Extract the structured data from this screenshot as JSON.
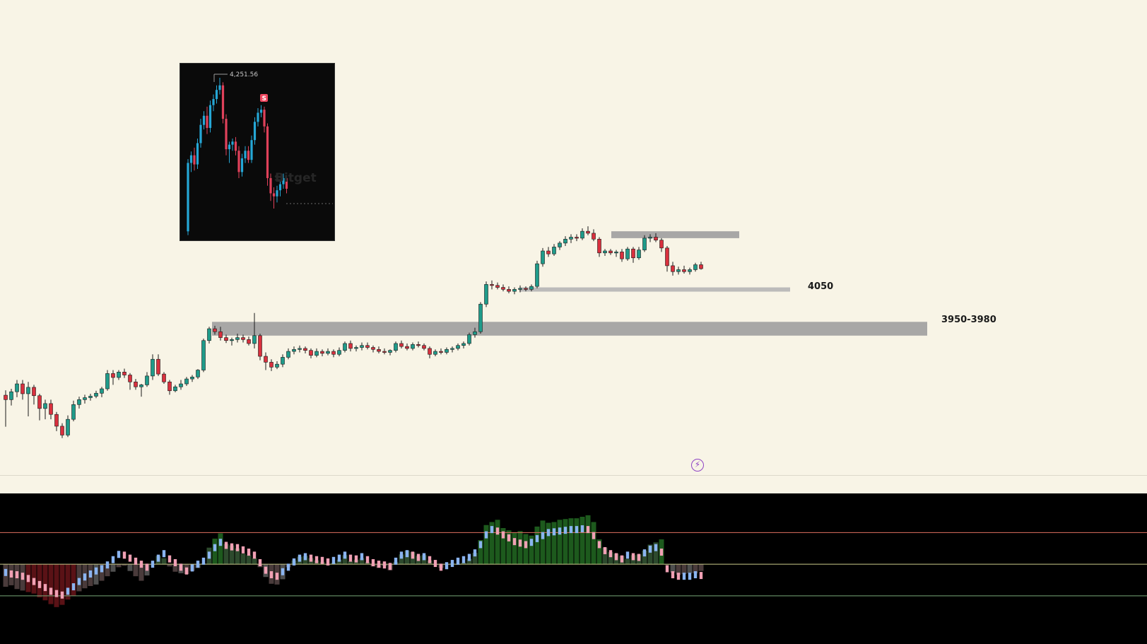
{
  "zones": [
    {
      "label": "4050",
      "top": 4058,
      "bottom": 4050,
      "color": "#b5b5b5"
    },
    {
      "label": "",
      "top": 4172,
      "bottom": 4158,
      "color": "#9e9e9e"
    },
    {
      "label": "3950-3980",
      "top": 3988,
      "bottom": 3960,
      "color": "#9e9e9e"
    }
  ],
  "inset": {
    "price_label": "4,251.56",
    "signal_label": "S",
    "watermark": "Bitget"
  },
  "alert_icon": "lightning-bolt-icon",
  "oscillator": {
    "levels": [
      "upper",
      "middle",
      "lower"
    ]
  },
  "colors": {
    "up": "#1f9b8a",
    "down": "#d9303e",
    "background": "#f8f4e6",
    "osc_background": "#000000",
    "osc_upper_line": "#e07060",
    "osc_middle_line": "#c9c98a",
    "osc_lower_line": "#78a878",
    "osc_blue": "#8ab4f0",
    "osc_pink": "#f0a0b4",
    "inset_up": "#25a7d6",
    "inset_down": "#e0415a",
    "signal": "#f0475f"
  },
  "chart_data": [
    {
      "type": "candlestick",
      "title": "",
      "ylim": [
        3740,
        4300
      ],
      "candles": [
        [
          3839,
          3849,
          3775,
          3830
        ],
        [
          3830,
          3852,
          3818,
          3846
        ],
        [
          3846,
          3870,
          3835,
          3862
        ],
        [
          3862,
          3870,
          3830,
          3842
        ],
        [
          3842,
          3866,
          3796,
          3855
        ],
        [
          3855,
          3860,
          3820,
          3838
        ],
        [
          3838,
          3842,
          3788,
          3812
        ],
        [
          3812,
          3830,
          3790,
          3822
        ],
        [
          3822,
          3830,
          3790,
          3800
        ],
        [
          3800,
          3805,
          3766,
          3776
        ],
        [
          3776,
          3782,
          3752,
          3758
        ],
        [
          3758,
          3798,
          3754,
          3790
        ],
        [
          3790,
          3828,
          3786,
          3820
        ],
        [
          3820,
          3836,
          3812,
          3830
        ],
        [
          3830,
          3840,
          3822,
          3834
        ],
        [
          3834,
          3842,
          3828,
          3837
        ],
        [
          3837,
          3848,
          3833,
          3843
        ],
        [
          3843,
          3856,
          3835,
          3852
        ],
        [
          3852,
          3890,
          3848,
          3883
        ],
        [
          3883,
          3890,
          3860,
          3875
        ],
        [
          3875,
          3890,
          3870,
          3886
        ],
        [
          3886,
          3893,
          3874,
          3880
        ],
        [
          3880,
          3884,
          3850,
          3866
        ],
        [
          3866,
          3872,
          3850,
          3856
        ],
        [
          3856,
          3862,
          3836,
          3860
        ],
        [
          3860,
          3886,
          3856,
          3878
        ],
        [
          3878,
          3922,
          3870,
          3912
        ],
        [
          3912,
          3922,
          3878,
          3882
        ],
        [
          3882,
          3886,
          3862,
          3866
        ],
        [
          3866,
          3870,
          3840,
          3848
        ],
        [
          3848,
          3860,
          3845,
          3856
        ],
        [
          3856,
          3870,
          3850,
          3862
        ],
        [
          3862,
          3876,
          3858,
          3872
        ],
        [
          3872,
          3880,
          3866,
          3876
        ],
        [
          3876,
          3892,
          3872,
          3890
        ],
        [
          3890,
          3954,
          3886,
          3950
        ],
        [
          3950,
          3978,
          3944,
          3974
        ],
        [
          3974,
          3980,
          3962,
          3968
        ],
        [
          3968,
          3978,
          3950,
          3956
        ],
        [
          3956,
          3962,
          3945,
          3950
        ],
        [
          3950,
          3956,
          3940,
          3952
        ],
        [
          3952,
          3964,
          3946,
          3956
        ],
        [
          3956,
          3962,
          3946,
          3952
        ],
        [
          3952,
          3958,
          3940,
          3944
        ],
        [
          3944,
          4006,
          3934,
          3960
        ],
        [
          3960,
          3964,
          3910,
          3918
        ],
        [
          3918,
          3926,
          3890,
          3906
        ],
        [
          3906,
          3912,
          3888,
          3896
        ],
        [
          3896,
          3908,
          3892,
          3902
        ],
        [
          3902,
          3922,
          3896,
          3916
        ],
        [
          3916,
          3934,
          3912,
          3928
        ],
        [
          3928,
          3938,
          3922,
          3932
        ],
        [
          3932,
          3940,
          3926,
          3934
        ],
        [
          3934,
          3938,
          3924,
          3930
        ],
        [
          3930,
          3934,
          3914,
          3920
        ],
        [
          3920,
          3934,
          3916,
          3928
        ],
        [
          3928,
          3932,
          3918,
          3924
        ],
        [
          3924,
          3934,
          3920,
          3928
        ],
        [
          3928,
          3932,
          3916,
          3922
        ],
        [
          3922,
          3936,
          3918,
          3930
        ],
        [
          3930,
          3948,
          3926,
          3944
        ],
        [
          3944,
          3950,
          3928,
          3934
        ],
        [
          3934,
          3940,
          3928,
          3936
        ],
        [
          3936,
          3946,
          3930,
          3940
        ],
        [
          3940,
          3946,
          3932,
          3936
        ],
        [
          3936,
          3940,
          3926,
          3932
        ],
        [
          3932,
          3938,
          3924,
          3928
        ],
        [
          3928,
          3934,
          3922,
          3926
        ],
        [
          3926,
          3932,
          3920,
          3930
        ],
        [
          3930,
          3948,
          3926,
          3944
        ],
        [
          3944,
          3950,
          3934,
          3938
        ],
        [
          3938,
          3944,
          3930,
          3934
        ],
        [
          3934,
          3946,
          3930,
          3942
        ],
        [
          3942,
          3948,
          3936,
          3940
        ],
        [
          3940,
          3944,
          3930,
          3934
        ],
        [
          3934,
          3938,
          3914,
          3922
        ],
        [
          3922,
          3932,
          3918,
          3928
        ],
        [
          3928,
          3934,
          3922,
          3926
        ],
        [
          3926,
          3936,
          3922,
          3932
        ],
        [
          3932,
          3938,
          3926,
          3934
        ],
        [
          3934,
          3944,
          3930,
          3940
        ],
        [
          3940,
          3948,
          3934,
          3944
        ],
        [
          3944,
          3966,
          3940,
          3962
        ],
        [
          3962,
          3976,
          3956,
          3968
        ],
        [
          3968,
          4028,
          3964,
          4024
        ],
        [
          4024,
          4070,
          4018,
          4064
        ],
        [
          4064,
          4072,
          4054,
          4062
        ],
        [
          4062,
          4068,
          4054,
          4058
        ],
        [
          4058,
          4064,
          4050,
          4054
        ],
        [
          4054,
          4060,
          4046,
          4050
        ],
        [
          4050,
          4058,
          4044,
          4054
        ],
        [
          4054,
          4062,
          4048,
          4056
        ],
        [
          4056,
          4060,
          4050,
          4054
        ],
        [
          4054,
          4064,
          4050,
          4060
        ],
        [
          4060,
          4112,
          4056,
          4106
        ],
        [
          4106,
          4138,
          4100,
          4132
        ],
        [
          4132,
          4140,
          4120,
          4126
        ],
        [
          4126,
          4146,
          4122,
          4140
        ],
        [
          4140,
          4152,
          4134,
          4148
        ],
        [
          4148,
          4162,
          4142,
          4156
        ],
        [
          4156,
          4166,
          4148,
          4160
        ],
        [
          4160,
          4166,
          4152,
          4158
        ],
        [
          4158,
          4178,
          4154,
          4172
        ],
        [
          4172,
          4182,
          4164,
          4168
        ],
        [
          4168,
          4176,
          4152,
          4156
        ],
        [
          4156,
          4160,
          4120,
          4128
        ],
        [
          4128,
          4136,
          4122,
          4132
        ],
        [
          4132,
          4136,
          4124,
          4128
        ],
        [
          4128,
          4134,
          4120,
          4130
        ],
        [
          4130,
          4136,
          4110,
          4116
        ],
        [
          4116,
          4140,
          4112,
          4136
        ],
        [
          4136,
          4140,
          4108,
          4118
        ],
        [
          4118,
          4140,
          4114,
          4134
        ],
        [
          4134,
          4164,
          4130,
          4158
        ],
        [
          4158,
          4166,
          4150,
          4160
        ],
        [
          4160,
          4168,
          4150,
          4154
        ],
        [
          4154,
          4158,
          4130,
          4138
        ],
        [
          4138,
          4142,
          4090,
          4102
        ],
        [
          4102,
          4110,
          4082,
          4090
        ],
        [
          4090,
          4100,
          4084,
          4094
        ],
        [
          4094,
          4102,
          4086,
          4090
        ],
        [
          4090,
          4098,
          4084,
          4094
        ],
        [
          4094,
          4108,
          4090,
          4104
        ],
        [
          4104,
          4110,
          4094,
          4096
        ]
      ]
    },
    {
      "type": "bar",
      "title": "",
      "ylim": [
        -1.0,
        1.0
      ],
      "reference_levels": [
        0.48,
        0.06,
        -0.36
      ],
      "values": [
        -0.24,
        -0.22,
        -0.27,
        -0.29,
        -0.31,
        -0.33,
        -0.38,
        -0.42,
        -0.47,
        -0.51,
        -0.48,
        -0.41,
        -0.36,
        -0.3,
        -0.26,
        -0.23,
        -0.21,
        -0.16,
        -0.1,
        -0.04,
        0.02,
        0.04,
        -0.03,
        -0.1,
        -0.16,
        -0.09,
        0.05,
        0.17,
        0.14,
        0.03,
        -0.04,
        -0.06,
        -0.07,
        -0.03,
        0.01,
        0.07,
        0.28,
        0.4,
        0.47,
        0.33,
        0.31,
        0.27,
        0.2,
        0.18,
        0.14,
        0.02,
        -0.11,
        -0.2,
        -0.21,
        -0.14,
        0.02,
        0.11,
        0.16,
        0.17,
        0.14,
        0.11,
        0.09,
        0.05,
        0.08,
        0.12,
        0.18,
        0.1,
        0.12,
        0.14,
        0.09,
        0.03,
        0.01,
        0.04,
        -0.02,
        0.09,
        0.19,
        0.24,
        0.22,
        0.17,
        0.18,
        0.11,
        0.05,
        0.01,
        0.05,
        0.07,
        0.06,
        0.08,
        0.13,
        0.21,
        0.38,
        0.58,
        0.62,
        0.65,
        0.54,
        0.51,
        0.48,
        0.5,
        0.46,
        0.44,
        0.56,
        0.64,
        0.61,
        0.62,
        0.65,
        0.66,
        0.67,
        0.67,
        0.69,
        0.71,
        0.62,
        0.39,
        0.28,
        0.22,
        0.2,
        0.17,
        0.13,
        0.18,
        0.19,
        0.24,
        0.32,
        0.35,
        0.39,
        0.06,
        -0.05,
        -0.08,
        -0.07,
        -0.06,
        -0.06,
        -0.03
      ],
      "line_values": [
        -0.05,
        -0.07,
        -0.08,
        -0.1,
        -0.13,
        -0.17,
        -0.21,
        -0.25,
        -0.3,
        -0.33,
        -0.35,
        -0.3,
        -0.24,
        -0.17,
        -0.11,
        -0.07,
        -0.03,
        0.0,
        0.05,
        0.12,
        0.19,
        0.18,
        0.14,
        0.1,
        0.06,
        0.02,
        0.06,
        0.14,
        0.2,
        0.13,
        0.08,
        0.02,
        -0.03,
        0.01,
        0.06,
        0.1,
        0.18,
        0.28,
        0.35,
        0.31,
        0.29,
        0.28,
        0.25,
        0.22,
        0.18,
        0.08,
        -0.02,
        -0.08,
        -0.1,
        -0.04,
        0.02,
        0.09,
        0.14,
        0.16,
        0.14,
        0.12,
        0.11,
        0.09,
        0.11,
        0.14,
        0.18,
        0.14,
        0.13,
        0.16,
        0.12,
        0.08,
        0.06,
        0.05,
        0.03,
        0.1,
        0.18,
        0.2,
        0.18,
        0.15,
        0.16,
        0.12,
        0.07,
        0.02,
        0.04,
        0.07,
        0.1,
        0.12,
        0.15,
        0.21,
        0.32,
        0.45,
        0.52,
        0.5,
        0.45,
        0.41,
        0.36,
        0.34,
        0.32,
        0.35,
        0.4,
        0.44,
        0.48,
        0.49,
        0.5,
        0.51,
        0.52,
        0.52,
        0.53,
        0.52,
        0.44,
        0.32,
        0.24,
        0.2,
        0.16,
        0.13,
        0.18,
        0.16,
        0.15,
        0.21,
        0.26,
        0.28,
        0.22,
        0.0,
        -0.08,
        -0.1,
        -0.1,
        -0.1,
        -0.08,
        -0.09
      ]
    },
    {
      "type": "candlestick",
      "title": "",
      "ylim": [
        4040,
        4265
      ],
      "annotations": [
        "4,251.56"
      ],
      "candles": [
        [
          4050,
          4145,
          4045,
          4140
        ],
        [
          4140,
          4155,
          4128,
          4150
        ],
        [
          4150,
          4160,
          4130,
          4138
        ],
        [
          4138,
          4172,
          4132,
          4166
        ],
        [
          4166,
          4198,
          4160,
          4190
        ],
        [
          4190,
          4208,
          4184,
          4202
        ],
        [
          4202,
          4214,
          4178,
          4186
        ],
        [
          4186,
          4222,
          4180,
          4216
        ],
        [
          4216,
          4230,
          4208,
          4224
        ],
        [
          4224,
          4242,
          4218,
          4236
        ],
        [
          4236,
          4252,
          4230,
          4242
        ],
        [
          4242,
          4246,
          4192,
          4198
        ],
        [
          4198,
          4204,
          4150,
          4158
        ],
        [
          4158,
          4168,
          4140,
          4164
        ],
        [
          4164,
          4172,
          4156,
          4168
        ],
        [
          4168,
          4174,
          4150,
          4156
        ],
        [
          4156,
          4162,
          4120,
          4128
        ],
        [
          4128,
          4152,
          4122,
          4146
        ],
        [
          4146,
          4162,
          4140,
          4156
        ],
        [
          4156,
          4162,
          4140,
          4144
        ],
        [
          4144,
          4176,
          4140,
          4170
        ],
        [
          4170,
          4200,
          4164,
          4194
        ],
        [
          4194,
          4212,
          4188,
          4206
        ],
        [
          4206,
          4216,
          4200,
          4210
        ],
        [
          4210,
          4214,
          4180,
          4188
        ],
        [
          4188,
          4192,
          4110,
          4120
        ],
        [
          4120,
          4126,
          4090,
          4100
        ],
        [
          4100,
          4108,
          4080,
          4096
        ],
        [
          4096,
          4110,
          4088,
          4104
        ],
        [
          4104,
          4116,
          4096,
          4112
        ],
        [
          4112,
          4126,
          4106,
          4120
        ],
        [
          4120,
          4124,
          4100,
          4106
        ]
      ]
    }
  ]
}
